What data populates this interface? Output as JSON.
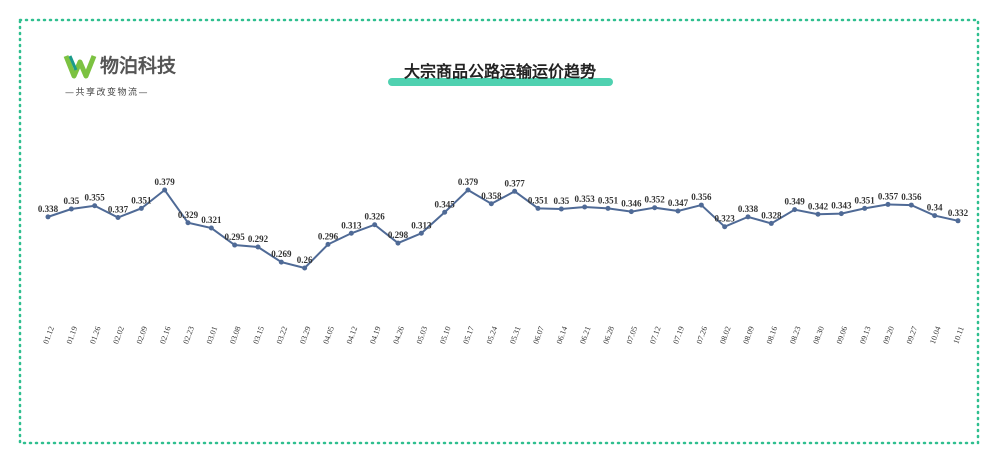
{
  "logo": {
    "name": "物泊科技",
    "slogan": "—共享改变物流—"
  },
  "chart_data": {
    "type": "line",
    "title": "大宗商品公路运输运价趋势",
    "categories": [
      "01.12",
      "01.19",
      "01.26",
      "02.02",
      "02.09",
      "02.16",
      "02.23",
      "03.01",
      "03.08",
      "03.15",
      "03.22",
      "03.29",
      "04.05",
      "04.12",
      "04.19",
      "04.26",
      "05.03",
      "05.10",
      "05.17",
      "05.24",
      "05.31",
      "06.07",
      "06.14",
      "06.21",
      "06.28",
      "07.05",
      "07.12",
      "07.19",
      "07.26",
      "08.02",
      "08.09",
      "08.16",
      "08.23",
      "08.30",
      "09.06",
      "09.13",
      "09.20",
      "09.27",
      "10.04",
      "10.11"
    ],
    "values": [
      0.338,
      0.35,
      0.355,
      0.337,
      0.351,
      0.379,
      0.329,
      0.321,
      0.295,
      0.292,
      0.269,
      0.26,
      0.296,
      0.313,
      0.326,
      0.298,
      0.313,
      0.345,
      0.379,
      0.358,
      0.377,
      0.351,
      0.35,
      0.353,
      0.351,
      0.346,
      0.352,
      0.347,
      0.356,
      0.323,
      0.338,
      0.328,
      0.349,
      0.342,
      0.343,
      0.351,
      0.357,
      0.356,
      0.34,
      0.332
    ],
    "color": "#4f6a96"
  }
}
